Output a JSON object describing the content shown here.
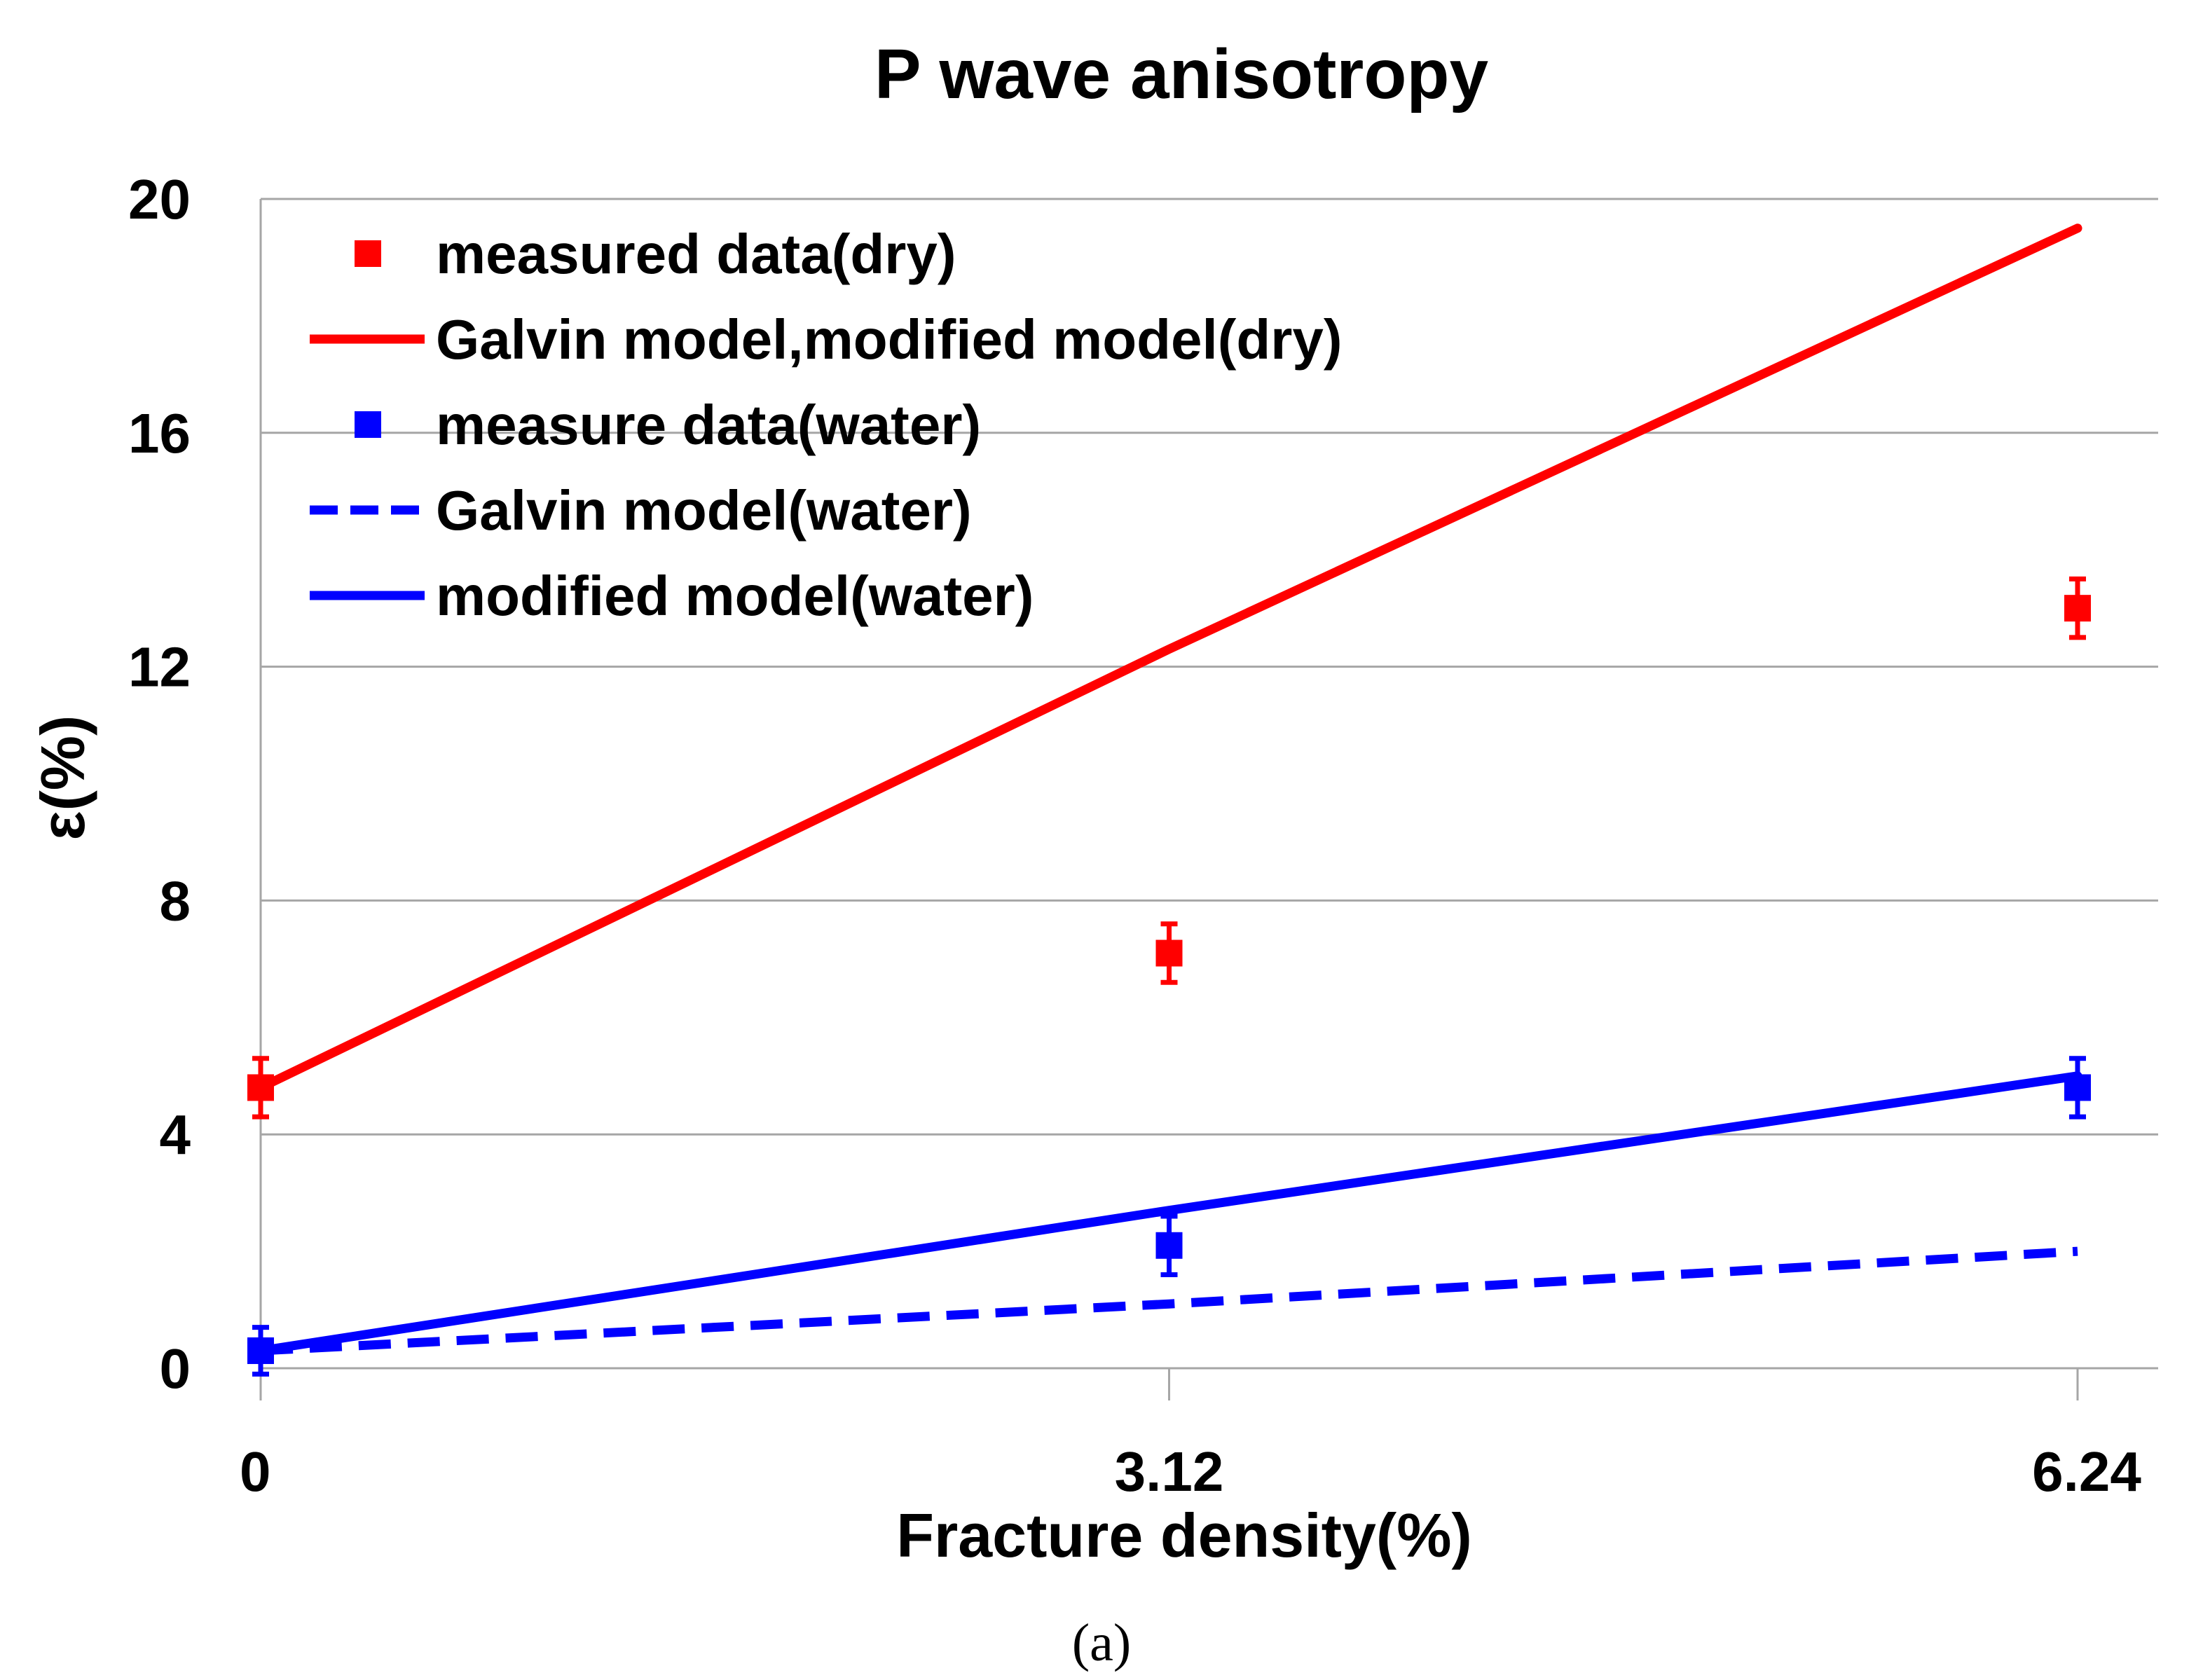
{
  "chart_data": {
    "type": "line",
    "title": "P wave anisotropy",
    "xlabel": "Fracture density(%)",
    "ylabel": "ε(%)",
    "caption": "(a)",
    "x_ticks": [
      0,
      3.12,
      6.24
    ],
    "x_tick_labels": [
      "0",
      "3.12",
      "6.24"
    ],
    "xlim": [
      0,
      6.24
    ],
    "y_ticks": [
      0,
      4,
      8,
      12,
      16,
      20
    ],
    "y_tick_labels": [
      "0",
      "4",
      "8",
      "12",
      "16",
      "20"
    ],
    "ylim": [
      0,
      20
    ],
    "grid": "horizontal",
    "legend_position": "top-left",
    "series": [
      {
        "name": "measured data(dry)",
        "kind": "points",
        "color": "#ff0000",
        "x": [
          0,
          3.12,
          6.24
        ],
        "y": [
          4.8,
          7.1,
          13.0
        ],
        "error": [
          0.5,
          0.5,
          0.5
        ]
      },
      {
        "name": "Galvin model,modified model(dry)",
        "kind": "line",
        "style": "solid",
        "color": "#ff0000",
        "x": [
          0,
          3.12,
          6.24
        ],
        "y": [
          4.8,
          12.3,
          19.5
        ]
      },
      {
        "name": "measure data(water)",
        "kind": "points",
        "color": "#0000ff",
        "x": [
          0,
          3.12,
          6.24
        ],
        "y": [
          0.3,
          2.1,
          4.8
        ],
        "error": [
          0.4,
          0.5,
          0.5
        ]
      },
      {
        "name": "Galvin model(water)",
        "kind": "line",
        "style": "dashed",
        "color": "#0000ff",
        "x": [
          0,
          3.12,
          6.24
        ],
        "y": [
          0.3,
          1.1,
          2.0
        ]
      },
      {
        "name": "modified model(water)",
        "kind": "line",
        "style": "solid",
        "color": "#0000ff",
        "x": [
          0,
          3.12,
          6.24
        ],
        "y": [
          0.3,
          2.7,
          5.0
        ]
      }
    ]
  }
}
